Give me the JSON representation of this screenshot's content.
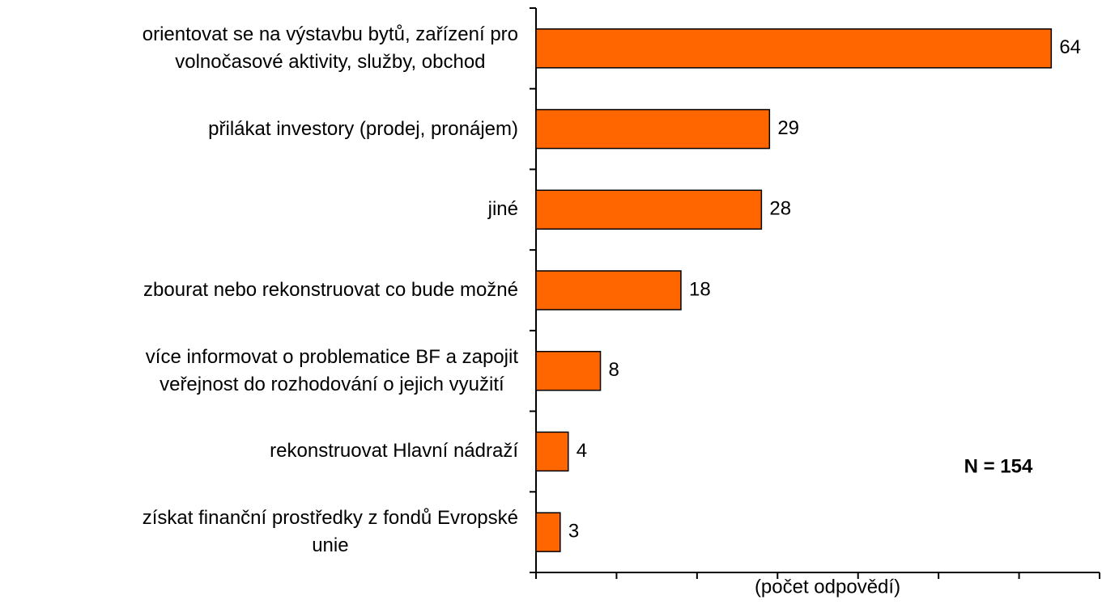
{
  "chart_data": {
    "type": "bar",
    "orientation": "horizontal",
    "categories": [
      "orientovat se na výstavbu bytů, zařízení pro\nvolnočasové aktivity, služby, obchod",
      "přilákat investory (prodej, pronájem)",
      "jiné",
      "zbourat nebo rekonstruovat co bude možné",
      "více informovat o problematice BF a zapojit\nveřejnost do rozhodování o jejich využití",
      "rekonstruovat Hlavní nádraží",
      "získat finanční prostředky z fondů Evropské\nunie"
    ],
    "values": [
      64,
      29,
      28,
      18,
      8,
      4,
      3
    ],
    "color": "#ff6600",
    "xlim": [
      0,
      70
    ],
    "xticks": [
      0,
      10,
      20,
      30,
      40,
      50,
      60,
      70
    ],
    "xlabel": "(počet odpovědí)",
    "annotation": "N = 154"
  }
}
